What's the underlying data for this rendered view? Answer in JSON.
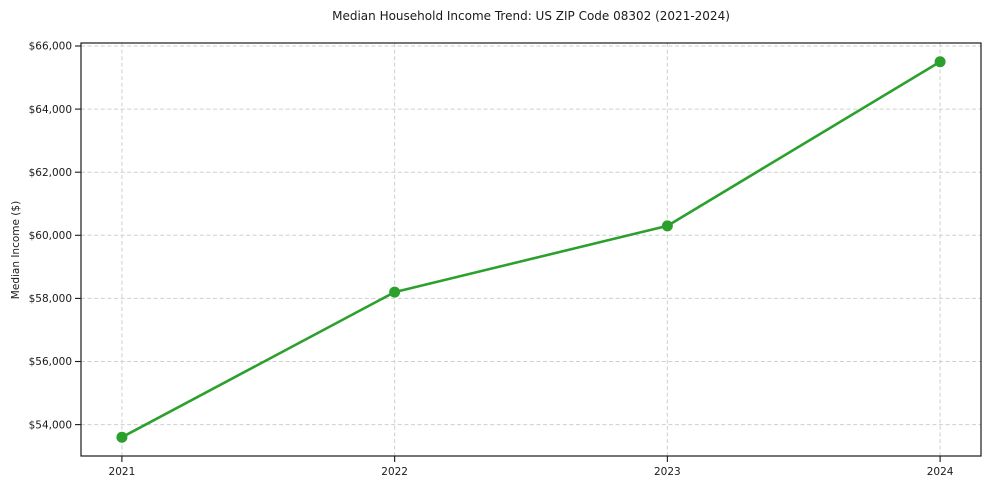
{
  "chart_data": {
    "type": "line",
    "title": "Median Household Income Trend: US ZIP Code 08302 (2021-2024)",
    "xlabel": "",
    "ylabel": "Median Income ($)",
    "x": [
      2021,
      2022,
      2023,
      2024
    ],
    "series": [
      {
        "name": "Median Household Income",
        "values": [
          53600,
          58200,
          60300,
          65500
        ]
      }
    ],
    "xticks": {
      "values": [
        2021,
        2022,
        2023,
        2024
      ],
      "labels": [
        "2021",
        "2022",
        "2023",
        "2024"
      ]
    },
    "yticks": {
      "values": [
        54000,
        56000,
        58000,
        60000,
        62000,
        64000,
        66000
      ],
      "labels": [
        "$54,000",
        "$56,000",
        "$58,000",
        "$60,000",
        "$62,000",
        "$64,000",
        "$66,000"
      ]
    },
    "xlim": [
      2020.85,
      2024.15
    ],
    "ylim": [
      53005,
      66095
    ],
    "grid": true,
    "grid_style": "dashed",
    "legend": null,
    "colors": {
      "line": "#2ca02c",
      "marker": "#2ca02c",
      "grid": "#cfcfcf",
      "spine": "#1a1a1a",
      "text": "#1a1a1a"
    }
  }
}
